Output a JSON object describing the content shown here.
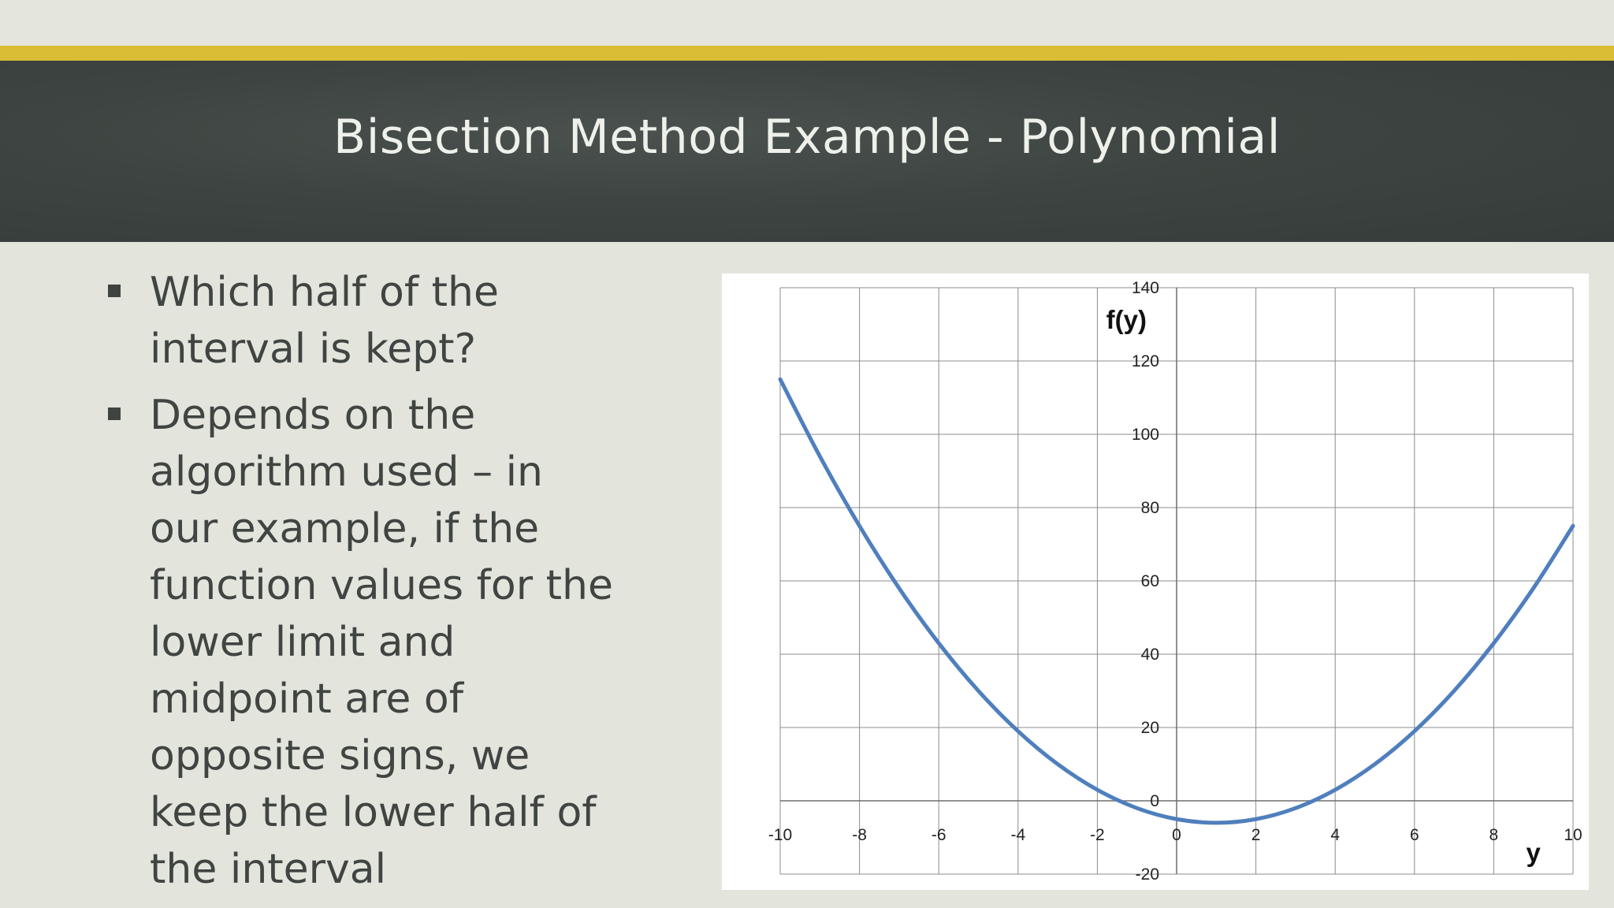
{
  "slide": {
    "title": "Bisection Method Example - Polynomial",
    "accent_color": "#dbbd35",
    "header_color": "#3d4441"
  },
  "bullets": [
    "Which half of the interval is kept?",
    "Depends on the algorithm used – in our example, if the function values for the lower limit and midpoint are of opposite signs, we keep the lower half of the interval"
  ],
  "chart_data": {
    "type": "line",
    "title": "",
    "xlabel": "y",
    "ylabel": "f(y)",
    "xlim": [
      -10,
      10
    ],
    "ylim": [
      -20,
      140
    ],
    "x_ticks": [
      "-10",
      "-8",
      "-6",
      "-4",
      "-2",
      "0",
      "2",
      "4",
      "6",
      "8",
      "10"
    ],
    "y_ticks": [
      "140",
      "120",
      "100",
      "80",
      "60",
      "40",
      "20",
      "0",
      "-20"
    ],
    "grid": true,
    "line_color": "#4f7fbd",
    "x": [
      -10,
      -9,
      -8,
      -7,
      -6,
      -5,
      -4,
      -3,
      -2,
      -1,
      0,
      1,
      2,
      3,
      4,
      5,
      6,
      7,
      8,
      9,
      10
    ],
    "y": [
      115,
      94,
      75,
      58,
      43,
      30,
      19,
      10,
      3,
      -2,
      -5,
      -6,
      -5,
      -2,
      3,
      10,
      19,
      30,
      43,
      58,
      75
    ]
  }
}
